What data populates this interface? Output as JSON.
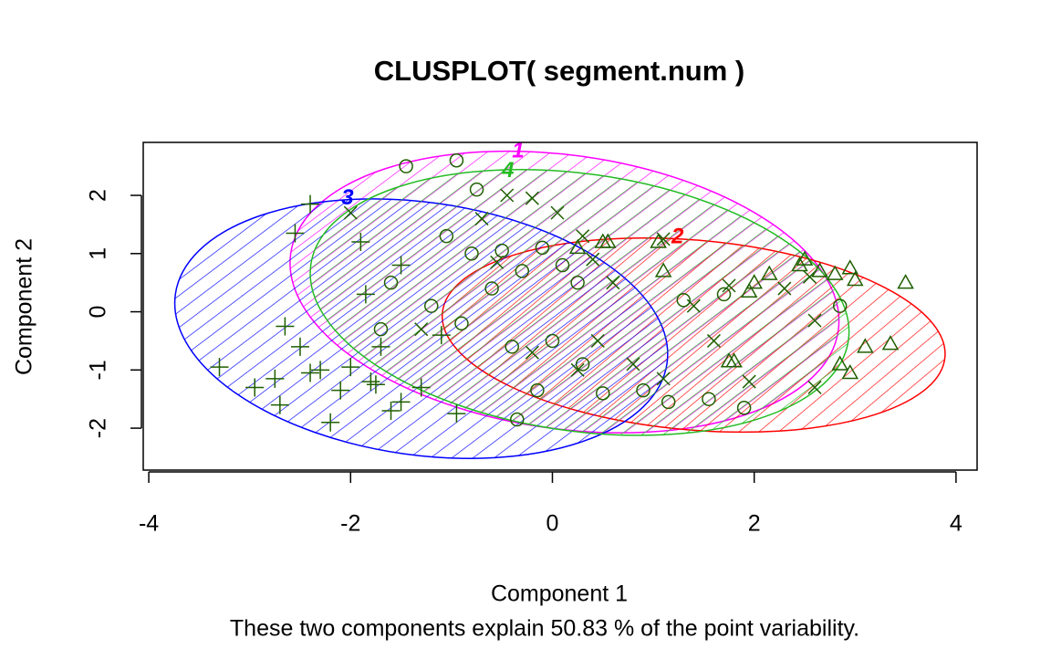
{
  "chart_data": {
    "type": "scatter",
    "title": "CLUSPLOT( segment.num )",
    "x_label": "Component 1",
    "y_label": "Component 2",
    "subtitle": "These two components explain 50.83 % of the point variability.",
    "xlim": [
      -4.055,
      4.209
    ],
    "ylim": [
      -2.72,
      2.91
    ],
    "xticks": [
      -4,
      -2,
      0,
      2,
      4
    ],
    "yticks": [
      -2,
      -1,
      0,
      1,
      2
    ],
    "point_color": "#1f5f00",
    "series": [
      {
        "name": "1",
        "color": "#ff00ff",
        "marker": "circle",
        "label_pos": [
          -0.34,
          2.75
        ],
        "ellipse": {
          "cx": 0.12,
          "cy": 0.34,
          "rx": 2.74,
          "ry": 2.35,
          "angle": 8
        },
        "x": [
          -1.45,
          -0.95,
          -0.75,
          -1.05,
          -0.8,
          -0.5,
          -0.3,
          -0.1,
          0.1,
          0.25,
          -0.6,
          -1.2,
          -0.9,
          -0.4,
          0.0,
          -0.15,
          0.5,
          0.9,
          1.15,
          1.55,
          1.9,
          1.3,
          1.7,
          2.85,
          -1.7,
          -0.35,
          0.3,
          -1.6
        ],
        "y": [
          2.5,
          2.6,
          2.1,
          1.3,
          1.0,
          1.05,
          0.7,
          1.1,
          0.8,
          0.5,
          0.4,
          0.1,
          -0.2,
          -0.6,
          -0.5,
          -1.35,
          -1.4,
          -1.35,
          -1.55,
          -1.5,
          -1.65,
          0.2,
          0.3,
          0.1,
          -0.3,
          -1.85,
          -0.9,
          0.5
        ]
      },
      {
        "name": "2",
        "color": "#ff0000",
        "marker": "triangle",
        "label_pos": [
          1.24,
          1.28
        ],
        "ellipse": {
          "cx": 1.4,
          "cy": -0.4,
          "rx": 2.5,
          "ry": 1.63,
          "angle": 5
        },
        "x": [
          0.25,
          0.5,
          0.55,
          1.1,
          1.05,
          1.75,
          1.8,
          2.0,
          2.15,
          2.5,
          2.65,
          2.8,
          2.95,
          3.0,
          3.5,
          3.1,
          3.35,
          2.85,
          2.95,
          2.45,
          1.95
        ],
        "y": [
          1.1,
          1.2,
          1.2,
          0.7,
          1.2,
          -0.85,
          -0.85,
          0.5,
          0.65,
          0.9,
          0.7,
          0.65,
          0.75,
          0.55,
          0.5,
          -0.6,
          -0.55,
          -0.9,
          -1.05,
          0.8,
          0.35
        ]
      },
      {
        "name": "3",
        "color": "#0000ff",
        "marker": "plus",
        "label_pos": [
          -2.03,
          1.94
        ],
        "ellipse": {
          "cx": -1.3,
          "cy": -0.29,
          "rx": 2.46,
          "ry": 2.17,
          "angle": 8
        },
        "x": [
          -3.3,
          -2.95,
          -2.7,
          -2.65,
          -2.55,
          -2.5,
          -2.4,
          -2.3,
          -2.2,
          -2.1,
          -2.0,
          -1.9,
          -1.85,
          -1.8,
          -1.7,
          -1.6,
          -1.5,
          -1.5,
          -1.3,
          -0.95,
          -2.4,
          -2.75,
          -1.1,
          -1.75
        ],
        "y": [
          -0.95,
          -1.3,
          -1.6,
          -0.25,
          1.35,
          -0.6,
          -1.05,
          -1.0,
          -1.9,
          -1.35,
          -0.95,
          1.2,
          0.3,
          -1.2,
          -0.6,
          -1.7,
          -1.55,
          0.8,
          -1.3,
          -1.75,
          1.85,
          -1.15,
          -0.4,
          -1.25
        ]
      },
      {
        "name": "4",
        "color": "#22bb22",
        "marker": "cross",
        "label_pos": [
          -0.44,
          2.41
        ],
        "ellipse": {
          "cx": 0.27,
          "cy": 0.16,
          "rx": 2.69,
          "ry": 2.21,
          "angle": 8
        },
        "x": [
          -0.45,
          -0.2,
          0.05,
          0.3,
          -0.7,
          -0.55,
          0.4,
          0.6,
          1.1,
          1.4,
          1.75,
          2.3,
          2.6,
          2.55,
          1.95,
          2.6,
          1.1,
          0.45,
          0.25,
          -0.2,
          -1.3,
          -2.0,
          0.8,
          1.6
        ],
        "y": [
          2.0,
          1.95,
          1.7,
          1.3,
          1.6,
          0.85,
          0.9,
          0.5,
          1.25,
          0.1,
          0.45,
          0.4,
          -0.15,
          0.6,
          -1.2,
          -1.3,
          -1.15,
          -0.5,
          -1.0,
          -0.7,
          -0.3,
          1.7,
          -0.9,
          -0.5
        ]
      }
    ]
  }
}
